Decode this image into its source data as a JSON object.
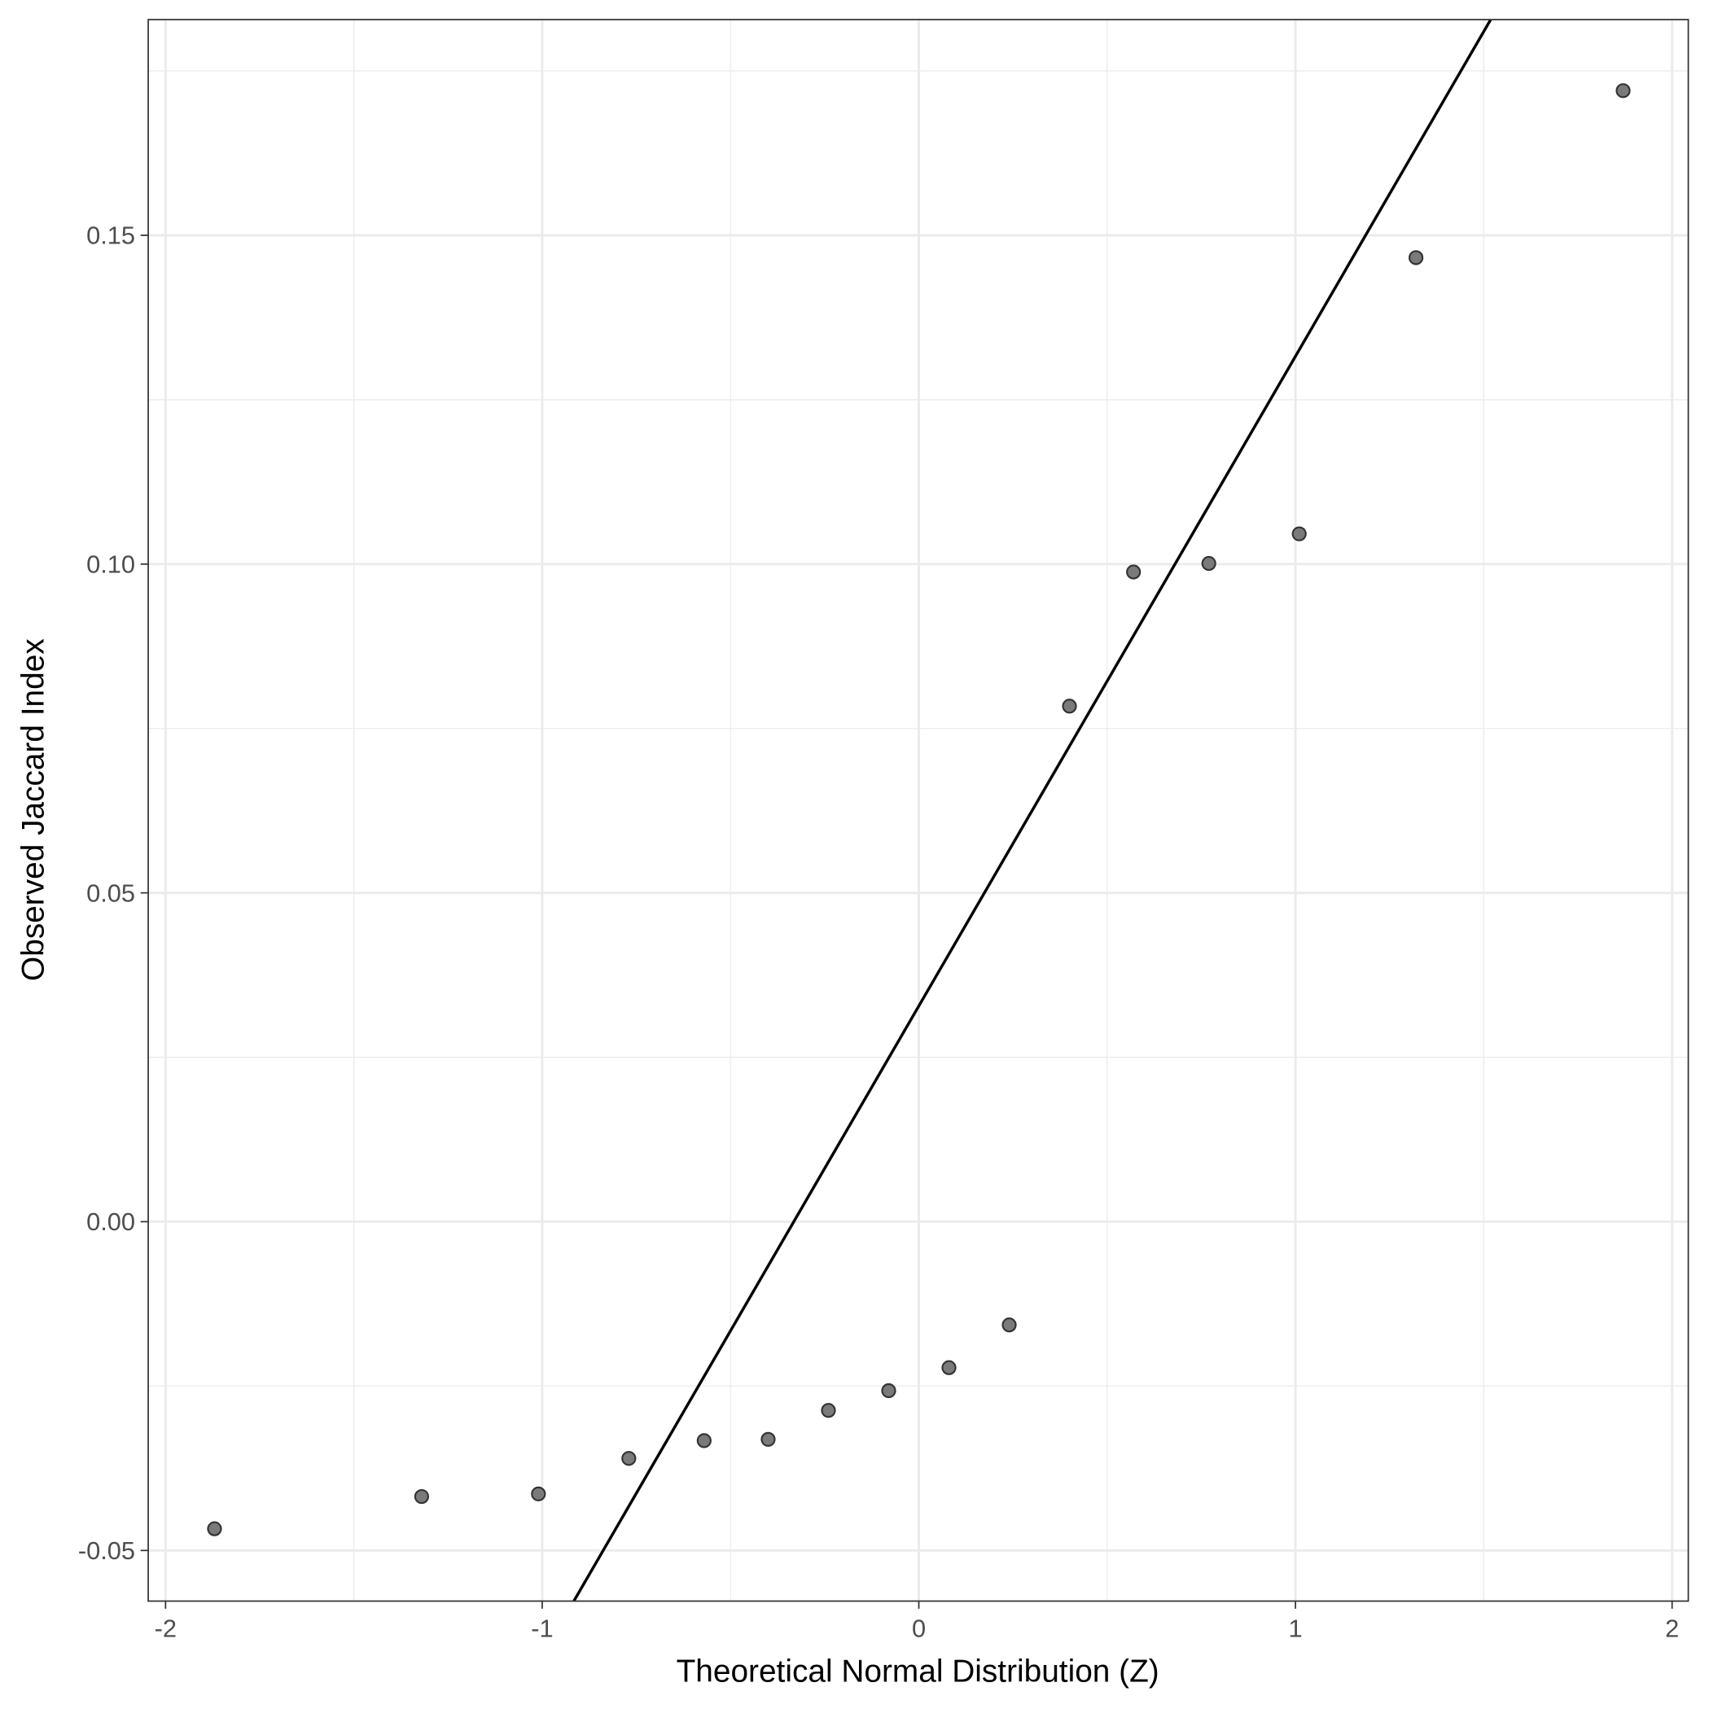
{
  "chart_data": {
    "type": "scatter",
    "title": "",
    "xlabel": "Theoretical Normal Distribution (Z)",
    "ylabel": "Observed Jaccard Index",
    "xlim": [
      -2.046,
      2.043
    ],
    "ylim": [
      -0.0577,
      0.1828
    ],
    "x_ticks": [
      -2,
      -1,
      0,
      1,
      2
    ],
    "x_tick_labels": [
      "-2",
      "-1",
      "0",
      "1",
      "2"
    ],
    "y_ticks": [
      -0.05,
      0,
      0.05,
      0.1,
      0.15
    ],
    "y_tick_labels": [
      "-0.05",
      "0.00",
      "0.05",
      "0.10",
      "0.15"
    ],
    "grid": true,
    "points": [
      {
        "x": -1.87,
        "y": -0.0467
      },
      {
        "x": -1.32,
        "y": -0.0418
      },
      {
        "x": -1.01,
        "y": -0.0414
      },
      {
        "x": -0.77,
        "y": -0.036
      },
      {
        "x": -0.57,
        "y": -0.0333
      },
      {
        "x": -0.4,
        "y": -0.0331
      },
      {
        "x": -0.24,
        "y": -0.0287
      },
      {
        "x": -0.08,
        "y": -0.0257
      },
      {
        "x": 0.08,
        "y": -0.0222
      },
      {
        "x": 0.24,
        "y": -0.0157
      },
      {
        "x": 0.4,
        "y": 0.0784
      },
      {
        "x": 0.57,
        "y": 0.0988
      },
      {
        "x": 0.77,
        "y": 0.1001
      },
      {
        "x": 1.01,
        "y": 0.1046
      },
      {
        "x": 1.32,
        "y": 0.1466
      },
      {
        "x": 1.87,
        "y": 0.172
      }
    ],
    "reference_line": {
      "intercept": 0.0328,
      "slope": 0.0988
    },
    "colors": {
      "point_fill": "#7a7a7a",
      "point_stroke": "#333333",
      "line": "#000000",
      "grid": "#ebebeb"
    }
  }
}
